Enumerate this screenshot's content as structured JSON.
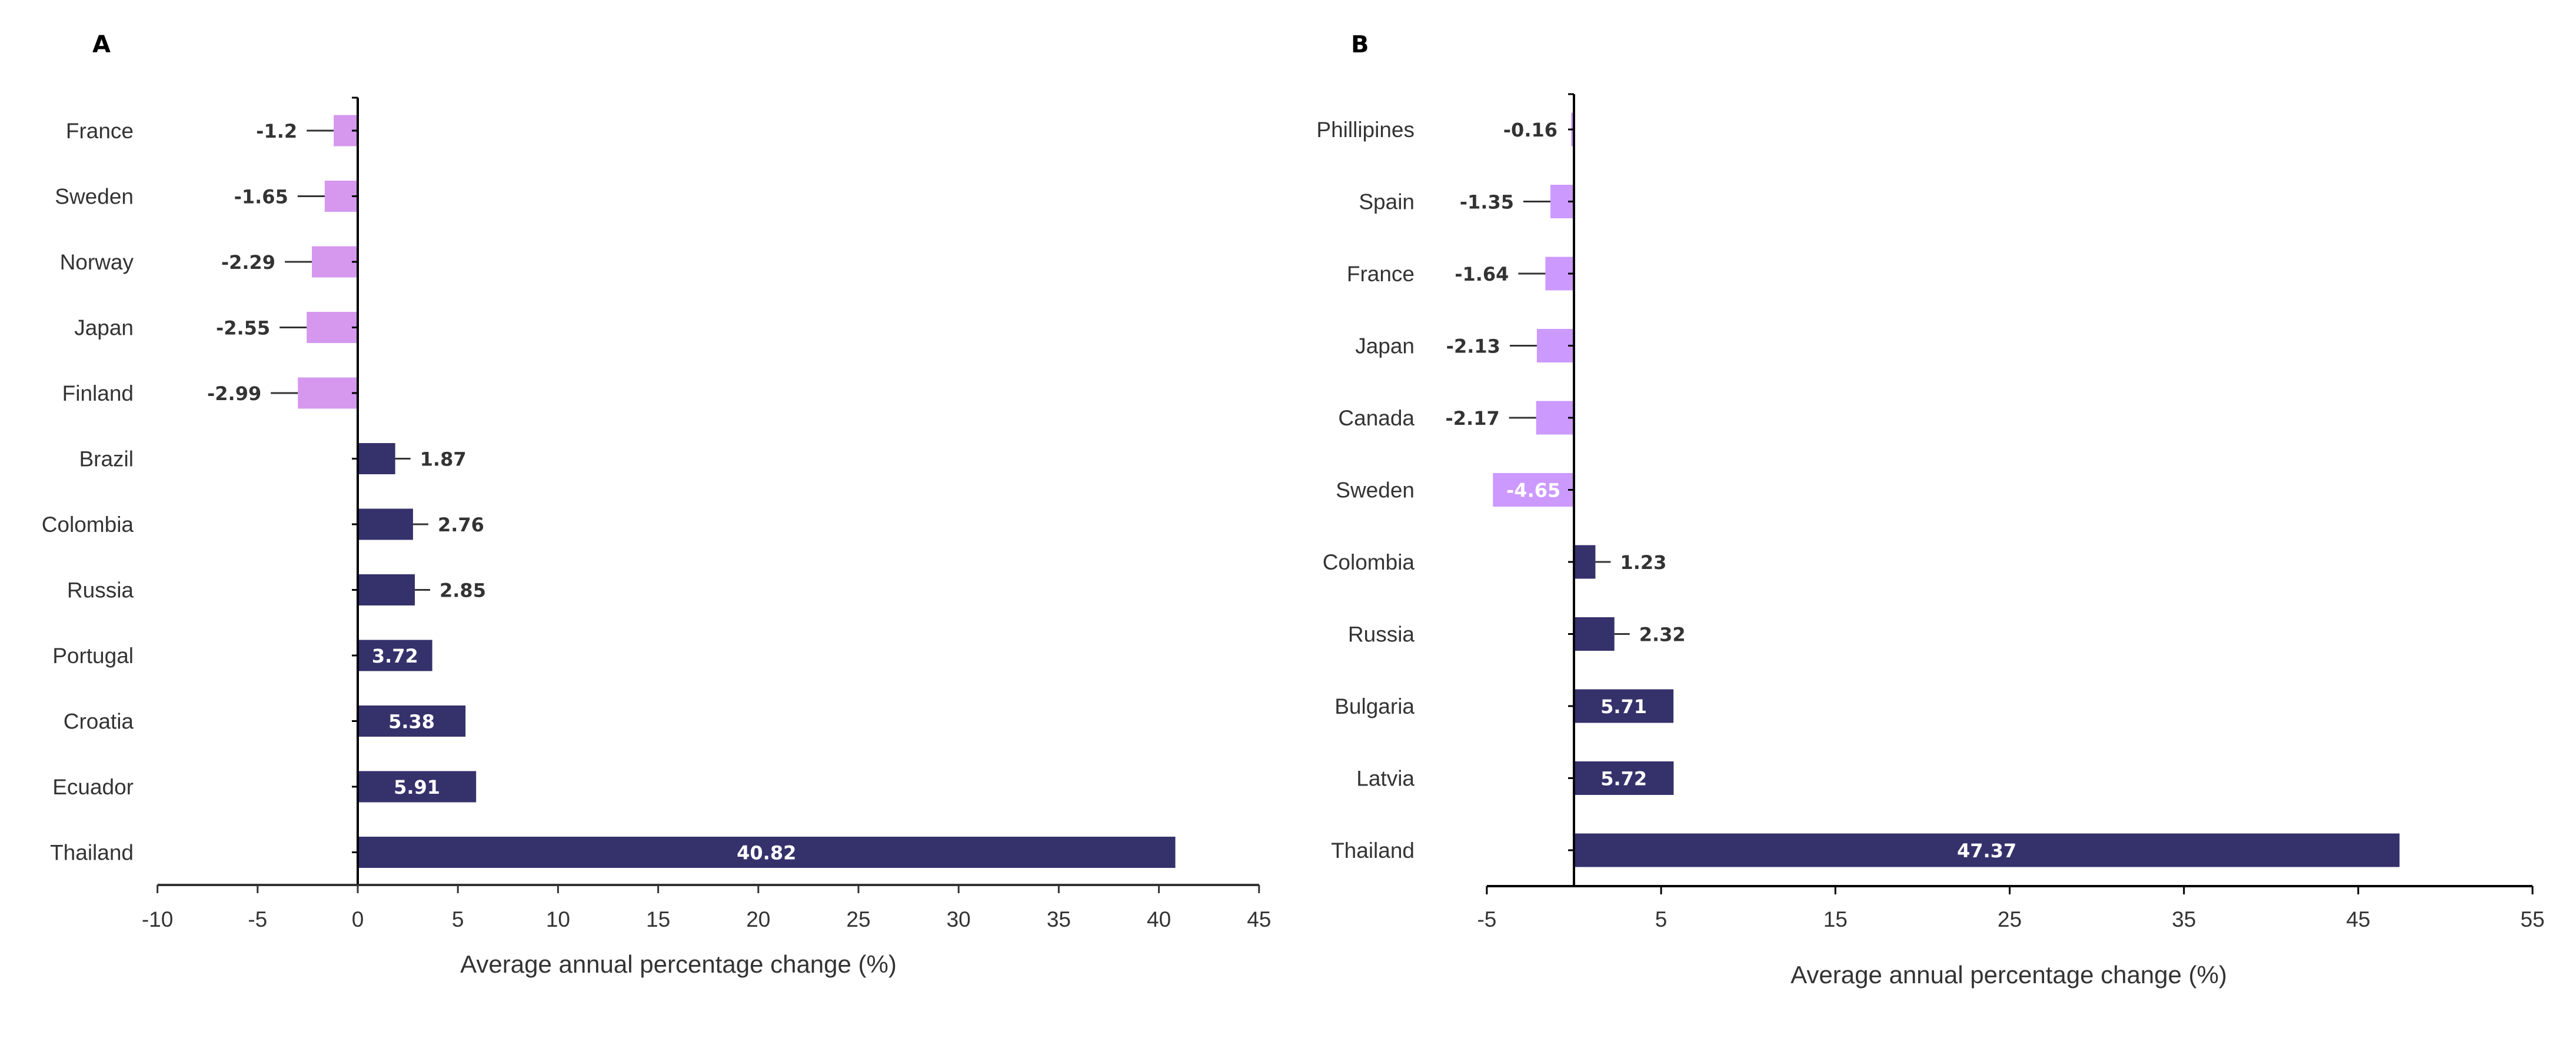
{
  "chart_data": [
    {
      "type": "bar",
      "orientation": "horizontal",
      "panel_label": "A",
      "categories": [
        "France",
        "Sweden",
        "Norway",
        "Japan",
        "Finland",
        "Brazil",
        "Colombia",
        "Russia",
        "Portugal",
        "Croatia",
        "Ecuador",
        "Thailand"
      ],
      "values": [
        -1.2,
        -1.65,
        -2.29,
        -2.55,
        -2.99,
        1.87,
        2.76,
        2.85,
        3.72,
        5.38,
        5.91,
        40.82
      ],
      "value_labels": [
        "-1.2",
        "-1.65",
        "-2.29",
        "-2.55",
        "-2.99",
        "1.87",
        "2.76",
        "2.85",
        "3.72",
        "5.38",
        "5.91",
        "40.82"
      ],
      "xlabel": "Average annual percentage change (%)",
      "ylabel": "",
      "xlim": [
        -10,
        45
      ],
      "xticks": [
        -10,
        -5,
        0,
        5,
        10,
        15,
        20,
        25,
        30,
        35,
        40,
        45
      ],
      "xtick_labels": [
        "-10",
        "-5",
        "0",
        "5",
        "10",
        "15",
        "20",
        "25",
        "30",
        "35",
        "40",
        "45"
      ],
      "grid": false,
      "colors": {
        "negative": "#D598EE",
        "positive": "#35316B",
        "label_dark": "#333333",
        "label_light": "#FFFFFF"
      }
    },
    {
      "type": "bar",
      "orientation": "horizontal",
      "panel_label": "B",
      "categories": [
        "Phillipines",
        "Spain",
        "France",
        "Japan",
        "Canada",
        "Sweden",
        "Colombia",
        "Russia",
        "Bulgaria",
        "Latvia",
        "Thailand"
      ],
      "values": [
        -0.16,
        -1.35,
        -1.64,
        -2.13,
        -2.17,
        -4.65,
        1.23,
        2.32,
        5.71,
        5.72,
        47.37
      ],
      "value_labels": [
        "-0.16",
        "-1.35",
        "-1.64",
        "-2.13",
        "-2.17",
        "-4.65",
        "1.23",
        "2.32",
        "5.71",
        "5.72",
        "47.37"
      ],
      "xlabel": "Average annual percentage change (%)",
      "ylabel": "",
      "xlim": [
        -5,
        55
      ],
      "xticks": [
        -5,
        5,
        15,
        25,
        35,
        45,
        55
      ],
      "xtick_labels": [
        "-5",
        "5",
        "15",
        "25",
        "35",
        "45",
        "55"
      ],
      "grid": false,
      "colors": {
        "negative": "#CC99FF",
        "positive": "#35316B",
        "label_dark": "#333333",
        "label_light": "#FFFFFF"
      }
    }
  ]
}
